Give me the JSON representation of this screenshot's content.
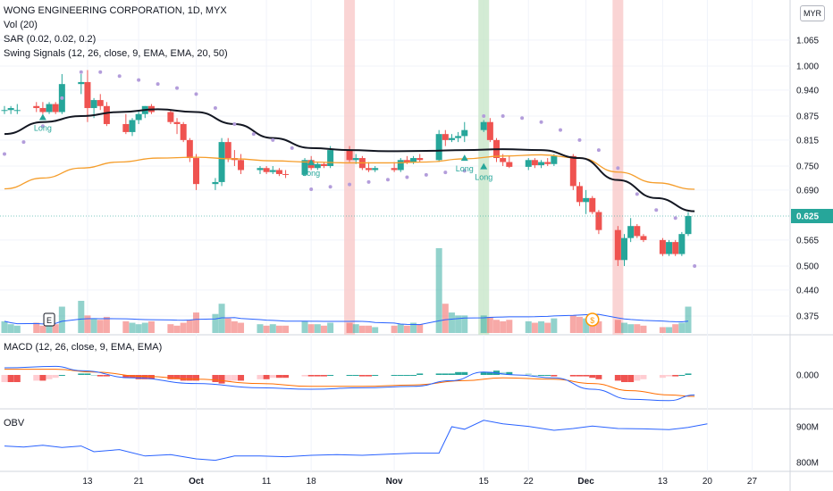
{
  "legend": {
    "title": "WONG ENGINEERING CORPORATION, 1D, MYX",
    "volume": "Vol (20)",
    "sar": "SAR (0.02, 0.02, 0.2)",
    "swing": "Swing Signals (12, 26, close, 9, EMA, EMA, 20, 50)",
    "macd": "MACD (12, 26, close, 9, EMA, EMA)",
    "obv": "OBV"
  },
  "currency": "MYR",
  "colors": {
    "up": "#26a69a",
    "down": "#ef5350",
    "ema_short": "#131722",
    "ema_long": "#f59d2a",
    "sar": "#b39ddb",
    "macd": "#2962ff",
    "signal": "#ff6d00",
    "obv": "#2962ff",
    "highlight_red": "#f9c9c9",
    "highlight_green": "#c8e6c9"
  },
  "chart_data": {
    "type": "candlestick",
    "price_axis": {
      "ticks": [
        1.065,
        1.0,
        0.94,
        0.875,
        0.815,
        0.75,
        0.69,
        0.625,
        0.565,
        0.5,
        0.44,
        0.375
      ],
      "last_price": 0.625
    },
    "time_axis": {
      "labels": [
        "13",
        "21",
        "Oct",
        "11",
        "18",
        "Nov",
        "15",
        "22",
        "Dec",
        "13",
        "20",
        "27"
      ],
      "label_days": [
        13,
        21,
        30,
        41,
        48,
        61,
        75,
        82,
        91,
        103,
        110,
        117
      ]
    },
    "candles": [
      {
        "d": 0,
        "o": 0.89,
        "h": 0.9,
        "l": 0.88,
        "c": 0.89
      },
      {
        "d": 1,
        "o": 0.89,
        "h": 0.9,
        "l": 0.88,
        "c": 0.895
      },
      {
        "d": 2,
        "o": 0.89,
        "h": 0.905,
        "l": 0.88,
        "c": 0.89
      },
      {
        "d": 5,
        "o": 0.9,
        "h": 0.91,
        "l": 0.885,
        "c": 0.895
      },
      {
        "d": 6,
        "o": 0.895,
        "h": 0.91,
        "l": 0.88,
        "c": 0.885
      },
      {
        "d": 7,
        "o": 0.885,
        "h": 0.91,
        "l": 0.88,
        "c": 0.905
      },
      {
        "d": 8,
        "o": 0.905,
        "h": 0.91,
        "l": 0.88,
        "c": 0.885
      },
      {
        "d": 9,
        "o": 0.885,
        "h": 0.98,
        "l": 0.88,
        "c": 0.955
      },
      {
        "d": 12,
        "o": 0.955,
        "h": 0.98,
        "l": 0.93,
        "c": 0.96
      },
      {
        "d": 13,
        "o": 0.96,
        "h": 0.99,
        "l": 0.86,
        "c": 0.895
      },
      {
        "d": 14,
        "o": 0.895,
        "h": 0.92,
        "l": 0.87,
        "c": 0.915
      },
      {
        "d": 15,
        "o": 0.915,
        "h": 0.93,
        "l": 0.89,
        "c": 0.9
      },
      {
        "d": 16,
        "o": 0.9,
        "h": 0.91,
        "l": 0.85,
        "c": 0.855
      },
      {
        "d": 19,
        "o": 0.855,
        "h": 0.88,
        "l": 0.83,
        "c": 0.835
      },
      {
        "d": 20,
        "o": 0.835,
        "h": 0.87,
        "l": 0.825,
        "c": 0.865
      },
      {
        "d": 21,
        "o": 0.865,
        "h": 0.89,
        "l": 0.855,
        "c": 0.88
      },
      {
        "d": 22,
        "o": 0.88,
        "h": 0.9,
        "l": 0.87,
        "c": 0.9
      },
      {
        "d": 23,
        "o": 0.9,
        "h": 0.905,
        "l": 0.88,
        "c": 0.885
      },
      {
        "d": 26,
        "o": 0.885,
        "h": 0.89,
        "l": 0.855,
        "c": 0.86
      },
      {
        "d": 27,
        "o": 0.86,
        "h": 0.87,
        "l": 0.83,
        "c": 0.855
      },
      {
        "d": 28,
        "o": 0.855,
        "h": 0.86,
        "l": 0.81,
        "c": 0.815
      },
      {
        "d": 29,
        "o": 0.815,
        "h": 0.82,
        "l": 0.76,
        "c": 0.77
      },
      {
        "d": 30,
        "o": 0.77,
        "h": 0.78,
        "l": 0.69,
        "c": 0.705
      },
      {
        "d": 33,
        "o": 0.705,
        "h": 0.72,
        "l": 0.69,
        "c": 0.71
      },
      {
        "d": 34,
        "o": 0.71,
        "h": 0.82,
        "l": 0.7,
        "c": 0.81
      },
      {
        "d": 35,
        "o": 0.81,
        "h": 0.82,
        "l": 0.76,
        "c": 0.77
      },
      {
        "d": 36,
        "o": 0.77,
        "h": 0.79,
        "l": 0.75,
        "c": 0.765
      },
      {
        "d": 37,
        "o": 0.765,
        "h": 0.78,
        "l": 0.73,
        "c": 0.74
      },
      {
        "d": 40,
        "o": 0.74,
        "h": 0.75,
        "l": 0.73,
        "c": 0.745
      },
      {
        "d": 41,
        "o": 0.745,
        "h": 0.75,
        "l": 0.73,
        "c": 0.735
      },
      {
        "d": 42,
        "o": 0.735,
        "h": 0.75,
        "l": 0.73,
        "c": 0.74
      },
      {
        "d": 43,
        "o": 0.74,
        "h": 0.745,
        "l": 0.725,
        "c": 0.73
      },
      {
        "d": 44,
        "o": 0.73,
        "h": 0.74,
        "l": 0.72,
        "c": 0.728
      },
      {
        "d": 47,
        "o": 0.728,
        "h": 0.77,
        "l": 0.725,
        "c": 0.765
      },
      {
        "d": 48,
        "o": 0.765,
        "h": 0.775,
        "l": 0.74,
        "c": 0.745
      },
      {
        "d": 49,
        "o": 0.745,
        "h": 0.76,
        "l": 0.74,
        "c": 0.755
      },
      {
        "d": 50,
        "o": 0.755,
        "h": 0.76,
        "l": 0.745,
        "c": 0.75
      },
      {
        "d": 51,
        "o": 0.75,
        "h": 0.8,
        "l": 0.745,
        "c": 0.79
      },
      {
        "d": 54,
        "o": 0.79,
        "h": 0.8,
        "l": 0.76,
        "c": 0.765
      },
      {
        "d": 55,
        "o": 0.765,
        "h": 0.78,
        "l": 0.755,
        "c": 0.77
      },
      {
        "d": 56,
        "o": 0.77,
        "h": 0.775,
        "l": 0.74,
        "c": 0.745
      },
      {
        "d": 57,
        "o": 0.745,
        "h": 0.76,
        "l": 0.735,
        "c": 0.74
      },
      {
        "d": 58,
        "o": 0.74,
        "h": 0.75,
        "l": 0.735,
        "c": 0.745
      },
      {
        "d": 61,
        "o": 0.745,
        "h": 0.76,
        "l": 0.735,
        "c": 0.74
      },
      {
        "d": 62,
        "o": 0.74,
        "h": 0.77,
        "l": 0.735,
        "c": 0.765
      },
      {
        "d": 63,
        "o": 0.765,
        "h": 0.775,
        "l": 0.755,
        "c": 0.76
      },
      {
        "d": 64,
        "o": 0.76,
        "h": 0.775,
        "l": 0.755,
        "c": 0.77
      },
      {
        "d": 65,
        "o": 0.77,
        "h": 0.78,
        "l": 0.76,
        "c": 0.765
      },
      {
        "d": 68,
        "o": 0.765,
        "h": 0.84,
        "l": 0.76,
        "c": 0.83
      },
      {
        "d": 69,
        "o": 0.83,
        "h": 0.84,
        "l": 0.8,
        "c": 0.815
      },
      {
        "d": 70,
        "o": 0.815,
        "h": 0.83,
        "l": 0.81,
        "c": 0.82
      },
      {
        "d": 71,
        "o": 0.82,
        "h": 0.835,
        "l": 0.81,
        "c": 0.825
      },
      {
        "d": 72,
        "o": 0.825,
        "h": 0.86,
        "l": 0.81,
        "c": 0.84
      },
      {
        "d": 75,
        "o": 0.84,
        "h": 0.865,
        "l": 0.835,
        "c": 0.86
      },
      {
        "d": 76,
        "o": 0.86,
        "h": 0.87,
        "l": 0.81,
        "c": 0.815
      },
      {
        "d": 77,
        "o": 0.815,
        "h": 0.82,
        "l": 0.76,
        "c": 0.77
      },
      {
        "d": 78,
        "o": 0.77,
        "h": 0.78,
        "l": 0.75,
        "c": 0.76
      },
      {
        "d": 79,
        "o": 0.76,
        "h": 0.775,
        "l": 0.745,
        "c": 0.748
      },
      {
        "d": 82,
        "o": 0.748,
        "h": 0.77,
        "l": 0.74,
        "c": 0.765
      },
      {
        "d": 83,
        "o": 0.765,
        "h": 0.77,
        "l": 0.745,
        "c": 0.752
      },
      {
        "d": 84,
        "o": 0.752,
        "h": 0.765,
        "l": 0.745,
        "c": 0.76
      },
      {
        "d": 85,
        "o": 0.76,
        "h": 0.77,
        "l": 0.75,
        "c": 0.755
      },
      {
        "d": 86,
        "o": 0.755,
        "h": 0.78,
        "l": 0.75,
        "c": 0.775
      },
      {
        "d": 89,
        "o": 0.775,
        "h": 0.78,
        "l": 0.69,
        "c": 0.7
      },
      {
        "d": 90,
        "o": 0.7,
        "h": 0.71,
        "l": 0.65,
        "c": 0.66
      },
      {
        "d": 91,
        "o": 0.66,
        "h": 0.69,
        "l": 0.63,
        "c": 0.67
      },
      {
        "d": 92,
        "o": 0.67,
        "h": 0.675,
        "l": 0.63,
        "c": 0.635
      },
      {
        "d": 93,
        "o": 0.635,
        "h": 0.64,
        "l": 0.58,
        "c": 0.59
      },
      {
        "d": 96,
        "o": 0.59,
        "h": 0.6,
        "l": 0.5,
        "c": 0.515
      },
      {
        "d": 97,
        "o": 0.515,
        "h": 0.58,
        "l": 0.5,
        "c": 0.57
      },
      {
        "d": 98,
        "o": 0.57,
        "h": 0.62,
        "l": 0.56,
        "c": 0.6
      },
      {
        "d": 99,
        "o": 0.6,
        "h": 0.605,
        "l": 0.57,
        "c": 0.575
      },
      {
        "d": 100,
        "o": 0.575,
        "h": 0.58,
        "l": 0.56,
        "c": 0.565
      },
      {
        "d": 103,
        "o": 0.565,
        "h": 0.57,
        "l": 0.525,
        "c": 0.53
      },
      {
        "d": 104,
        "o": 0.53,
        "h": 0.565,
        "l": 0.525,
        "c": 0.56
      },
      {
        "d": 105,
        "o": 0.56,
        "h": 0.565,
        "l": 0.525,
        "c": 0.53
      },
      {
        "d": 106,
        "o": 0.53,
        "h": 0.585,
        "l": 0.525,
        "c": 0.58
      },
      {
        "d": 107,
        "o": 0.58,
        "h": 0.635,
        "l": 0.575,
        "c": 0.625
      }
    ],
    "volume": [
      8,
      6,
      5,
      7,
      5,
      9,
      6,
      18,
      22,
      12,
      10,
      9,
      11,
      8,
      7,
      6,
      7,
      8,
      6,
      5,
      7,
      9,
      14,
      13,
      20,
      10,
      8,
      7,
      6,
      5,
      6,
      5,
      5,
      8,
      6,
      6,
      5,
      7,
      7,
      6,
      5,
      5,
      4,
      5,
      6,
      5,
      7,
      6,
      58,
      20,
      14,
      12,
      12,
      12,
      11,
      9,
      8,
      9,
      8,
      7,
      8,
      7,
      10,
      12,
      11,
      10,
      9,
      8,
      9,
      7,
      6,
      6,
      5,
      4,
      4,
      6,
      7,
      18
    ],
    "ema_short": [
      [
        0,
        0.83
      ],
      [
        6,
        0.86
      ],
      [
        12,
        0.875
      ],
      [
        18,
        0.885
      ],
      [
        24,
        0.892
      ],
      [
        30,
        0.885
      ],
      [
        36,
        0.855
      ],
      [
        42,
        0.82
      ],
      [
        48,
        0.795
      ],
      [
        54,
        0.79
      ],
      [
        60,
        0.787
      ],
      [
        66,
        0.788
      ],
      [
        72,
        0.79
      ],
      [
        78,
        0.792
      ],
      [
        84,
        0.79
      ],
      [
        90,
        0.77
      ],
      [
        96,
        0.715
      ],
      [
        102,
        0.67
      ],
      [
        108,
        0.637
      ]
    ],
    "ema_long": [
      [
        0,
        0.693
      ],
      [
        6,
        0.72
      ],
      [
        12,
        0.745
      ],
      [
        18,
        0.76
      ],
      [
        24,
        0.77
      ],
      [
        30,
        0.772
      ],
      [
        36,
        0.768
      ],
      [
        42,
        0.763
      ],
      [
        48,
        0.76
      ],
      [
        54,
        0.758
      ],
      [
        60,
        0.758
      ],
      [
        66,
        0.76
      ],
      [
        72,
        0.768
      ],
      [
        78,
        0.775
      ],
      [
        84,
        0.778
      ],
      [
        90,
        0.77
      ],
      [
        96,
        0.735
      ],
      [
        102,
        0.708
      ],
      [
        108,
        0.692
      ]
    ],
    "sar_points": [
      [
        0,
        0.78
      ],
      [
        3,
        0.81
      ],
      [
        6,
        0.85
      ],
      [
        9,
        0.92
      ],
      [
        12,
        0.985
      ],
      [
        15,
        0.985
      ],
      [
        18,
        0.975
      ],
      [
        21,
        0.965
      ],
      [
        24,
        0.955
      ],
      [
        27,
        0.945
      ],
      [
        30,
        0.93
      ],
      [
        33,
        0.895
      ],
      [
        36,
        0.855
      ],
      [
        39,
        0.83
      ],
      [
        42,
        0.815
      ],
      [
        45,
        0.795
      ],
      [
        48,
        0.692
      ],
      [
        51,
        0.698
      ],
      [
        54,
        0.704
      ],
      [
        57,
        0.71
      ],
      [
        60,
        0.716
      ],
      [
        63,
        0.722
      ],
      [
        66,
        0.728
      ],
      [
        69,
        0.734
      ],
      [
        72,
        0.738
      ],
      [
        75,
        0.875
      ],
      [
        78,
        0.875
      ],
      [
        81,
        0.87
      ],
      [
        84,
        0.86
      ],
      [
        87,
        0.84
      ],
      [
        90,
        0.815
      ],
      [
        93,
        0.79
      ],
      [
        96,
        0.745
      ],
      [
        99,
        0.68
      ],
      [
        102,
        0.64
      ],
      [
        105,
        0.62
      ],
      [
        108,
        0.5
      ]
    ],
    "signals": [
      {
        "d": 6,
        "price": 0.865,
        "type": "long",
        "label": "Long"
      },
      {
        "d": 48,
        "price": 0.752,
        "type": "long",
        "label": "Long"
      },
      {
        "d": 72,
        "price": 0.763,
        "type": "long",
        "label": "Long"
      },
      {
        "d": 75,
        "price": 0.742,
        "type": "long",
        "label": "Long"
      }
    ],
    "highlights": [
      {
        "d": 54,
        "color": "red"
      },
      {
        "d": 75,
        "color": "green"
      },
      {
        "d": 96,
        "color": "red"
      }
    ],
    "events": [
      {
        "d": 7,
        "label": "E"
      },
      {
        "d": 92,
        "label": "$"
      }
    ],
    "macd_hist": [
      -5,
      -5,
      -5,
      -4,
      -4,
      -3,
      -2,
      0,
      1,
      1,
      0,
      -1,
      -1,
      -2,
      -2,
      -3,
      -3,
      -3,
      -3,
      -3,
      -4,
      -4,
      -4,
      -5,
      -6,
      -5,
      -4,
      -4,
      -3,
      -3,
      -2,
      -2,
      -2,
      -1,
      -1,
      -1,
      -1,
      0,
      0,
      0,
      -1,
      -1,
      0,
      0,
      0,
      0,
      0,
      1,
      1,
      1,
      1,
      2,
      2,
      2,
      2,
      3,
      2,
      2,
      1,
      0,
      0,
      0,
      -1,
      -1,
      -1,
      -1,
      -2,
      -3,
      -4,
      -5,
      -5,
      -4,
      -3,
      -2,
      -1,
      -1,
      0,
      1
    ],
    "macd_line": [
      [
        0,
        5
      ],
      [
        8,
        6
      ],
      [
        12,
        3
      ],
      [
        20,
        -2
      ],
      [
        30,
        -6
      ],
      [
        40,
        -9
      ],
      [
        48,
        -10
      ],
      [
        56,
        -9
      ],
      [
        64,
        -8
      ],
      [
        70,
        -4
      ],
      [
        75,
        2
      ],
      [
        80,
        0
      ],
      [
        86,
        -2
      ],
      [
        92,
        -10
      ],
      [
        98,
        -17
      ],
      [
        104,
        -18
      ],
      [
        108,
        -14
      ]
    ],
    "signal_line": [
      [
        0,
        4
      ],
      [
        8,
        4
      ],
      [
        14,
        2
      ],
      [
        22,
        -1
      ],
      [
        30,
        -3
      ],
      [
        40,
        -6
      ],
      [
        48,
        -8
      ],
      [
        56,
        -8
      ],
      [
        64,
        -7
      ],
      [
        72,
        -4
      ],
      [
        78,
        -2
      ],
      [
        86,
        -3
      ],
      [
        92,
        -6
      ],
      [
        98,
        -11
      ],
      [
        104,
        -14
      ],
      [
        108,
        -15
      ]
    ],
    "obv_axis": {
      "ticks": [
        "900M",
        "800M"
      ]
    },
    "obv": [
      [
        0,
        846
      ],
      [
        3,
        843
      ],
      [
        6,
        848
      ],
      [
        9,
        842
      ],
      [
        12,
        846
      ],
      [
        14,
        830
      ],
      [
        18,
        836
      ],
      [
        22,
        818
      ],
      [
        26,
        822
      ],
      [
        30,
        810
      ],
      [
        33,
        806
      ],
      [
        36,
        818
      ],
      [
        40,
        818
      ],
      [
        44,
        816
      ],
      [
        48,
        820
      ],
      [
        52,
        822
      ],
      [
        56,
        820
      ],
      [
        60,
        823
      ],
      [
        64,
        826
      ],
      [
        68,
        826
      ],
      [
        70,
        900
      ],
      [
        72,
        893
      ],
      [
        75,
        918
      ],
      [
        78,
        908
      ],
      [
        82,
        901
      ],
      [
        86,
        890
      ],
      [
        89,
        895
      ],
      [
        92,
        902
      ],
      [
        96,
        895
      ],
      [
        100,
        894
      ],
      [
        104,
        892
      ],
      [
        107,
        898
      ],
      [
        110,
        908
      ]
    ]
  }
}
